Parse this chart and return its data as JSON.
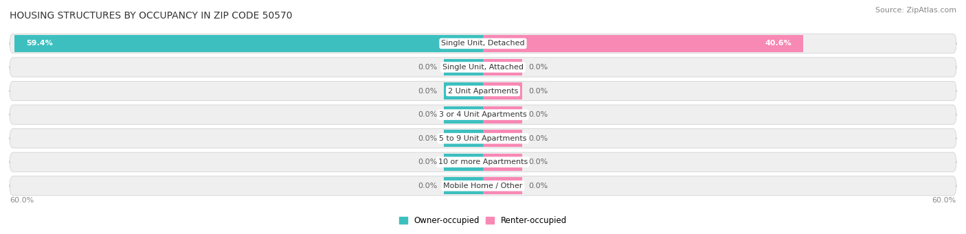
{
  "title": "HOUSING STRUCTURES BY OCCUPANCY IN ZIP CODE 50570",
  "source": "Source: ZipAtlas.com",
  "categories": [
    "Single Unit, Detached",
    "Single Unit, Attached",
    "2 Unit Apartments",
    "3 or 4 Unit Apartments",
    "5 to 9 Unit Apartments",
    "10 or more Apartments",
    "Mobile Home / Other"
  ],
  "owner_values": [
    59.4,
    0.0,
    0.0,
    0.0,
    0.0,
    0.0,
    0.0
  ],
  "renter_values": [
    40.6,
    0.0,
    0.0,
    0.0,
    0.0,
    0.0,
    0.0
  ],
  "owner_color": "#3dbfbf",
  "renter_color": "#f888b4",
  "axis_max": 60.0,
  "bg_color": "#ffffff",
  "row_bg_color": "#efefef",
  "title_fontsize": 10,
  "source_fontsize": 8,
  "label_fontsize": 8,
  "category_fontsize": 8,
  "legend_fontsize": 8.5,
  "axis_label_fontsize": 8,
  "zero_bar_pct": 5.0,
  "stub_bar_pct": 5.0
}
